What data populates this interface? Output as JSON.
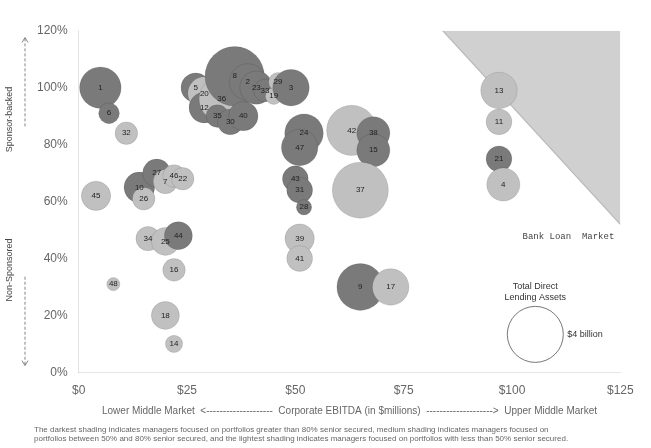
{
  "chart_data": {
    "type": "bubble",
    "xlabel": "Lower Middle Market  <--------------------  Corporate EBITDA (in $millions)  -------------------->  Upper Middle Market",
    "y_labels": {
      "upper": "Sponsor-backed",
      "lower": "Non-Sponsored"
    },
    "footnote": "The darkest shading indicates managers focused on portfolios greater than 80% senior secured, medium shading indicates managers focused on\nportfolios between 50% and 80% senior secured, and the lightest shading indicates managers focused on portfolios with less than 50% senior secured.",
    "x": [
      5,
      7,
      11,
      4,
      14,
      15,
      18,
      20,
      22,
      24,
      16,
      20,
      23,
      8,
      22,
      20,
      22,
      27,
      29,
      29,
      33,
      36,
      39,
      41,
      32,
      35,
      38,
      43,
      45,
      46,
      49,
      52,
      51,
      50,
      51,
      52,
      51,
      51,
      63,
      68,
      68,
      65,
      65,
      72,
      97,
      97,
      97,
      98
    ],
    "values": [
      100,
      91,
      84,
      62,
      65,
      61,
      70,
      67,
      69,
      68,
      47,
      46,
      48,
      31,
      36,
      20,
      10,
      100,
      98,
      93,
      96,
      104,
      102,
      100,
      90,
      88,
      90,
      99,
      97,
      102,
      100,
      84,
      79,
      68,
      64,
      58,
      47,
      40,
      85,
      84,
      78,
      64,
      30,
      30,
      99,
      88,
      75,
      66
    ],
    "sizes": [
      2.2,
      0.55,
      0.65,
      1.1,
      1.2,
      0.65,
      1.0,
      0.75,
      0.65,
      0.65,
      0.75,
      1.0,
      1.0,
      0.22,
      0.65,
      1.0,
      0.38,
      1.1,
      1.4,
      1.2,
      2.6,
      4.5,
      1.7,
      1.4,
      0.65,
      0.85,
      1.1,
      0.65,
      0.35,
      0.45,
      1.7,
      1.9,
      1.7,
      0.85,
      0.85,
      0.3,
      1.1,
      0.85,
      3.2,
      1.4,
      1.4,
      4.0,
      2.8,
      1.7,
      1.7,
      0.85,
      0.85,
      1.4
    ],
    "point_labels": [
      1,
      6,
      32,
      45,
      10,
      26,
      27,
      7,
      46,
      22,
      34,
      25,
      44,
      48,
      16,
      18,
      14,
      5,
      20,
      12,
      36,
      8,
      2,
      23,
      35,
      30,
      40,
      33,
      19,
      29,
      3,
      24,
      47,
      43,
      31,
      28,
      39,
      41,
      42,
      38,
      15,
      37,
      9,
      17,
      13,
      11,
      21,
      4
    ],
    "colors": [
      "#7a7a7a",
      "#7a7a7a",
      "#c0c0c0",
      "#c0c0c0",
      "#7a7a7a",
      "#c0c0c0",
      "#7a7a7a",
      "#c0c0c0",
      "#c0c0c0",
      "#c0c0c0",
      "#c0c0c0",
      "#c0c0c0",
      "#7a7a7a",
      "#c0c0c0",
      "#c0c0c0",
      "#c0c0c0",
      "#c0c0c0",
      "#7a7a7a",
      "#c0c0c0",
      "#7a7a7a",
      "#c0c0c0",
      "#7a7a7a",
      "#7a7a7a",
      "#7a7a7a",
      "#7a7a7a",
      "#7a7a7a",
      "#7a7a7a",
      "#7a7a7a",
      "#c0c0c0",
      "#c0c0c0",
      "#7a7a7a",
      "#7a7a7a",
      "#7a7a7a",
      "#7a7a7a",
      "#7a7a7a",
      "#7a7a7a",
      "#c0c0c0",
      "#c0c0c0",
      "#c0c0c0",
      "#7a7a7a",
      "#7a7a7a",
      "#c0c0c0",
      "#7a7a7a",
      "#c0c0c0",
      "#c0c0c0",
      "#c0c0c0",
      "#7a7a7a",
      "#c0c0c0"
    ],
    "region": {
      "label": "Bank Loan  Market",
      "x": [
        84,
        125
      ],
      "y": [
        120,
        52
      ],
      "color": "#d0d0d0"
    },
    "size_legend": {
      "title": "Total Direct\nLending Assets",
      "label": "$4 billion",
      "size": 4.0
    },
    "xlim": [
      0,
      125
    ],
    "xticks": [
      {
        "value": 0,
        "label": "$0"
      },
      {
        "value": 25,
        "label": "$25"
      },
      {
        "value": 50,
        "label": "$50"
      },
      {
        "value": 75,
        "label": "$75"
      },
      {
        "value": 100,
        "label": "$100"
      },
      {
        "value": 125,
        "label": "$125"
      }
    ],
    "ylim": [
      0,
      120
    ],
    "yticks": [
      {
        "value": 0,
        "label": "0%"
      },
      {
        "value": 20,
        "label": "20%"
      },
      {
        "value": 40,
        "label": "40%"
      },
      {
        "value": 60,
        "label": "60%"
      },
      {
        "value": 80,
        "label": "80%"
      },
      {
        "value": 100,
        "label": "100%"
      },
      {
        "value": 120,
        "label": "120%"
      }
    ],
    "grid": false
  }
}
